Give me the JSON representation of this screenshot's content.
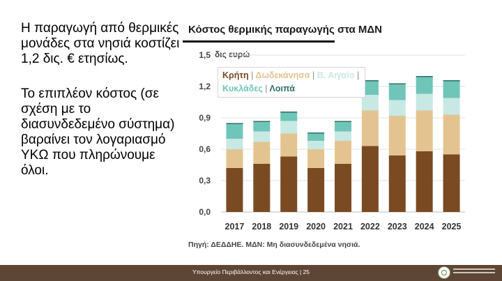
{
  "text": {
    "paragraph1": "Η παραγωγή από θερμικές μονάδες στα νησιά κοστίζει 1,2 δις. € ετησίως.",
    "paragraph2": "Το επιπλέον κόστος (σε σχέση με το διασυνδεδεμένο σύστημα) βαραίνει τον λογαριασμό ΥΚΩ που πληρώνουμε όλοι."
  },
  "footer": {
    "label": "Υπουργείο Περιβάλλοντος και Ενέργειας | 25"
  },
  "chart_data": {
    "type": "bar",
    "stacked": true,
    "title": "Κόστος θερμικής παραγωγής στα ΜΔΝ",
    "ylabel": "δις ευρώ",
    "categories": [
      "2017",
      "2018",
      "2019",
      "2020",
      "2021",
      "2022",
      "2023",
      "2024",
      "2025"
    ],
    "y_ticks": [
      "0,0",
      "0,3",
      "0,6",
      "0,9",
      "1,2",
      "1,5"
    ],
    "ylim": [
      0,
      1.5
    ],
    "grid": true,
    "legend_position": "top-left",
    "legend_separator": "|",
    "source": "Πηγή: ΔΕΔΔΗΕ. ΜΔΝ: Μη διασυνδεδεμένα νησιά.",
    "series": [
      {
        "name": "Κρήτη",
        "color": "#7a4a22",
        "values": [
          0.42,
          0.46,
          0.53,
          0.42,
          0.46,
          0.63,
          0.54,
          0.58,
          0.55
        ]
      },
      {
        "name": "Δωδεκάνησα",
        "color": "#e3c490",
        "values": [
          0.18,
          0.21,
          0.22,
          0.18,
          0.22,
          0.34,
          0.38,
          0.39,
          0.38
        ]
      },
      {
        "name": "Β. Αιγαίο",
        "color": "#c8e8e3",
        "values": [
          0.1,
          0.1,
          0.12,
          0.08,
          0.09,
          0.15,
          0.15,
          0.16,
          0.16
        ]
      },
      {
        "name": "Κυκλάδες",
        "color": "#6fc5b8",
        "values": [
          0.14,
          0.09,
          0.08,
          0.07,
          0.09,
          0.13,
          0.15,
          0.16,
          0.16
        ]
      },
      {
        "name": "Λοιπά",
        "color": "#2f6f63",
        "values": [
          0.01,
          0.01,
          0.01,
          0.01,
          0.01,
          0.01,
          0.01,
          0.01,
          0.01
        ]
      }
    ]
  }
}
